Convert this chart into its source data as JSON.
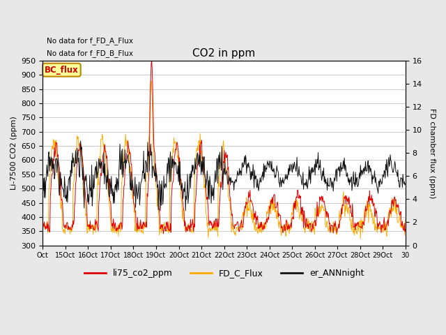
{
  "title": "CO2 in ppm",
  "annotation_lines": [
    "No data for f_FD_A_Flux",
    "No data for f_FD_B_Flux"
  ],
  "bc_flux_label": "BC_flux",
  "ylabel_left": "Li-7500 CO2 (ppm)",
  "ylabel_right": "FD chamber flux (ppm)",
  "ylim_left": [
    300,
    950
  ],
  "ylim_right": [
    0,
    16
  ],
  "yticks_left": [
    300,
    350,
    400,
    450,
    500,
    550,
    600,
    650,
    700,
    750,
    800,
    850,
    900,
    950
  ],
  "yticks_right": [
    0,
    2,
    4,
    6,
    8,
    10,
    12,
    14,
    16
  ],
  "xtick_labels": [
    "Oct",
    "15Oct",
    "16Oct",
    "17Oct",
    "18Oct",
    "19Oct",
    "20Oct",
    "21Oct",
    "22Oct",
    "23Oct",
    "24Oct",
    "25Oct",
    "26Oct",
    "27Oct",
    "28Oct",
    "29Oct",
    "30"
  ],
  "legend_entries": [
    "li75_co2_ppm",
    "FD_C_Flux",
    "er_ANNnight"
  ],
  "line_colors": [
    "#dd0000",
    "#ffaa00",
    "#111111"
  ],
  "bc_flux_box_color": "#ffff99",
  "bc_flux_border_color": "#bb8800",
  "bc_flux_text_color": "#cc0000",
  "background_color": "#e8e8e8",
  "plot_bg_color": "#ffffff",
  "grid_color": "#cccccc"
}
